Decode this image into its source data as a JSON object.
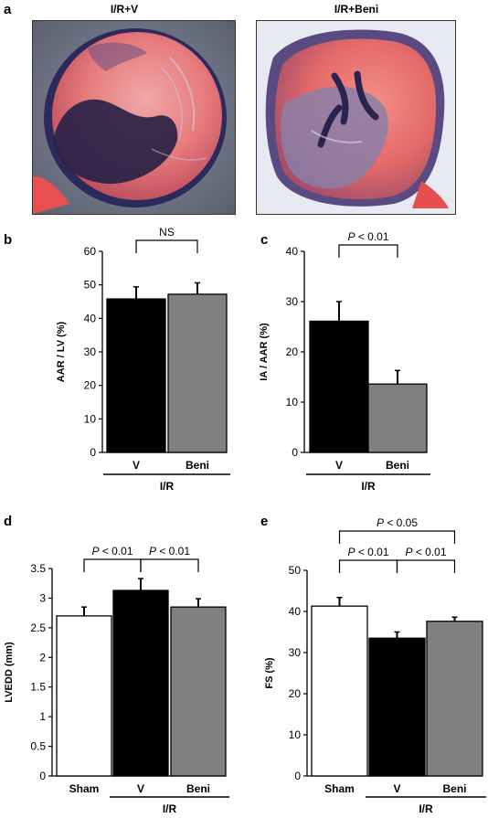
{
  "panels": {
    "a": "a",
    "b": "b",
    "c": "c",
    "d": "d",
    "e": "e"
  },
  "photos": [
    {
      "title": "I/R+V"
    },
    {
      "title": "I/R+Beni"
    }
  ],
  "chart_data": [
    {
      "id": "b",
      "type": "bar",
      "ylabel": "AAR / LV (%)",
      "ylim": [
        0,
        60
      ],
      "yticks": [
        0,
        10,
        20,
        30,
        40,
        50,
        60
      ],
      "categories": [
        "V",
        "Beni"
      ],
      "values": [
        45.8,
        47.2
      ],
      "errors": [
        3.6,
        3.4
      ],
      "colors": [
        "#000000",
        "#808080"
      ],
      "group_label": "I/R",
      "comparisons": [
        {
          "from": 0,
          "to": 1,
          "label": "NS"
        }
      ]
    },
    {
      "id": "c",
      "type": "bar",
      "ylabel": "IA / AAR (%)",
      "ylim": [
        0,
        40
      ],
      "yticks": [
        0,
        10,
        20,
        30,
        40
      ],
      "categories": [
        "V",
        "Beni"
      ],
      "values": [
        26.1,
        13.6
      ],
      "errors": [
        3.9,
        2.7
      ],
      "colors": [
        "#000000",
        "#808080"
      ],
      "group_label": "I/R",
      "comparisons": [
        {
          "from": 0,
          "to": 1,
          "label_prefix": "P",
          "label_rest": " < 0.01"
        }
      ]
    },
    {
      "id": "d",
      "type": "bar",
      "ylabel": "LVEDD (mm)",
      "ylim": [
        0,
        3.5
      ],
      "yticks": [
        0,
        0.5,
        1,
        1.5,
        2,
        2.5,
        3,
        3.5
      ],
      "categories": [
        "Sham",
        "V",
        "Beni"
      ],
      "values": [
        2.7,
        3.13,
        2.85
      ],
      "errors": [
        0.15,
        0.2,
        0.14
      ],
      "colors": [
        "#ffffff",
        "#000000",
        "#808080"
      ],
      "group_label": "I/R",
      "comparisons": [
        {
          "from": 0,
          "to": 1,
          "label_prefix": "P",
          "label_rest": " < 0.01"
        },
        {
          "from": 1,
          "to": 2,
          "label_prefix": "P",
          "label_rest": " < 0.01"
        }
      ]
    },
    {
      "id": "e",
      "type": "bar",
      "ylabel": "FS (%)",
      "ylim": [
        0,
        50
      ],
      "yticks": [
        0,
        10,
        20,
        30,
        40,
        50
      ],
      "categories": [
        "Sham",
        "V",
        "Beni"
      ],
      "values": [
        41.3,
        33.5,
        37.6
      ],
      "errors": [
        2.1,
        1.5,
        1.0
      ],
      "colors": [
        "#ffffff",
        "#000000",
        "#808080"
      ],
      "group_label": "I/R",
      "comparisons": [
        {
          "from": 0,
          "to": 1,
          "label_prefix": "P",
          "label_rest": " < 0.01"
        },
        {
          "from": 1,
          "to": 2,
          "label_prefix": "P",
          "label_rest": " < 0.01"
        },
        {
          "from": 0,
          "to": 2,
          "label_prefix": "P",
          "label_rest": " < 0.05"
        }
      ]
    }
  ]
}
